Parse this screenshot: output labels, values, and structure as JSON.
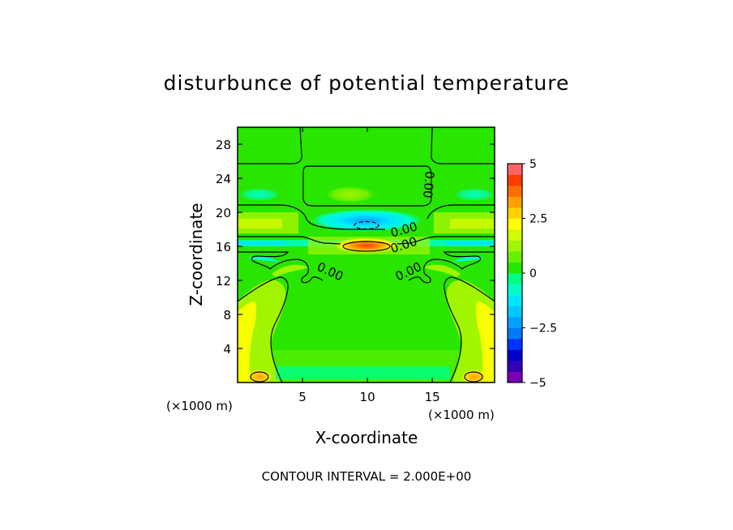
{
  "chart_data": {
    "type": "heatmap",
    "title": "disturbunce of potential temperature",
    "xlabel": "X-coordinate",
    "ylabel": "Z-coordinate",
    "x_unit_label": "(×1000 m)",
    "y_unit_label": "(×1000 m)",
    "xlim": [
      0,
      19.8
    ],
    "ylim": [
      0,
      30
    ],
    "x_ticks": [
      5,
      10,
      15
    ],
    "y_ticks": [
      4,
      8,
      12,
      16,
      20,
      24,
      28
    ],
    "colorbar": {
      "min": -5,
      "max": 5,
      "step": 0.5,
      "labels": [
        "5",
        "2.5",
        "0",
        "−2.5",
        "−5"
      ],
      "label_values": [
        5,
        2.5,
        0,
        -2.5,
        -5
      ],
      "colors": [
        "#7a00b4",
        "#3200b4",
        "#0000c8",
        "#0032ff",
        "#0078ff",
        "#00a0ff",
        "#00c8ff",
        "#00e6ff",
        "#00ffc8",
        "#00ff82",
        "#28e600",
        "#64f000",
        "#a0f500",
        "#d2fa00",
        "#ffff00",
        "#ffd200",
        "#ffa000",
        "#ff6e00",
        "#ff3c00",
        "#ff6464"
      ]
    },
    "contour_interval_text": "CONTOUR INTERVAL = 2.000E+00",
    "contour_labels": [
      {
        "text": "0.00",
        "x": 7.0,
        "z": 12.6,
        "rotate": 25
      },
      {
        "text": "0.00",
        "x": 13.3,
        "z": 12.6,
        "rotate": -25
      },
      {
        "text": "0.00",
        "x": 12.9,
        "z": 15.7,
        "rotate": -18
      },
      {
        "text": "0.00",
        "x": 12.9,
        "z": 17.5,
        "rotate": -15
      },
      {
        "text": "0.00",
        "x": 14.4,
        "z": 23.3,
        "rotate": 95
      }
    ],
    "features": [
      {
        "kind": "warm",
        "value": 4.5,
        "x": 10.0,
        "z": 16.0,
        "rx": 1.6,
        "rz": 0.5
      },
      {
        "kind": "cold",
        "value": -2.5,
        "x": 10.0,
        "z": 18.5,
        "rx": 1.8,
        "rz": 0.8
      },
      {
        "kind": "warm",
        "value": 2.5,
        "x": 1.6,
        "z": 0.8,
        "rx": 0.9,
        "rz": 0.6
      },
      {
        "kind": "warm",
        "value": 2.5,
        "x": 18.2,
        "z": 0.8,
        "rx": 0.9,
        "rz": 0.6
      },
      {
        "kind": "weak-cold",
        "value": -0.5,
        "x": 10.0,
        "z": 1.2,
        "rx": 6.5,
        "rz": 1.0
      }
    ]
  }
}
